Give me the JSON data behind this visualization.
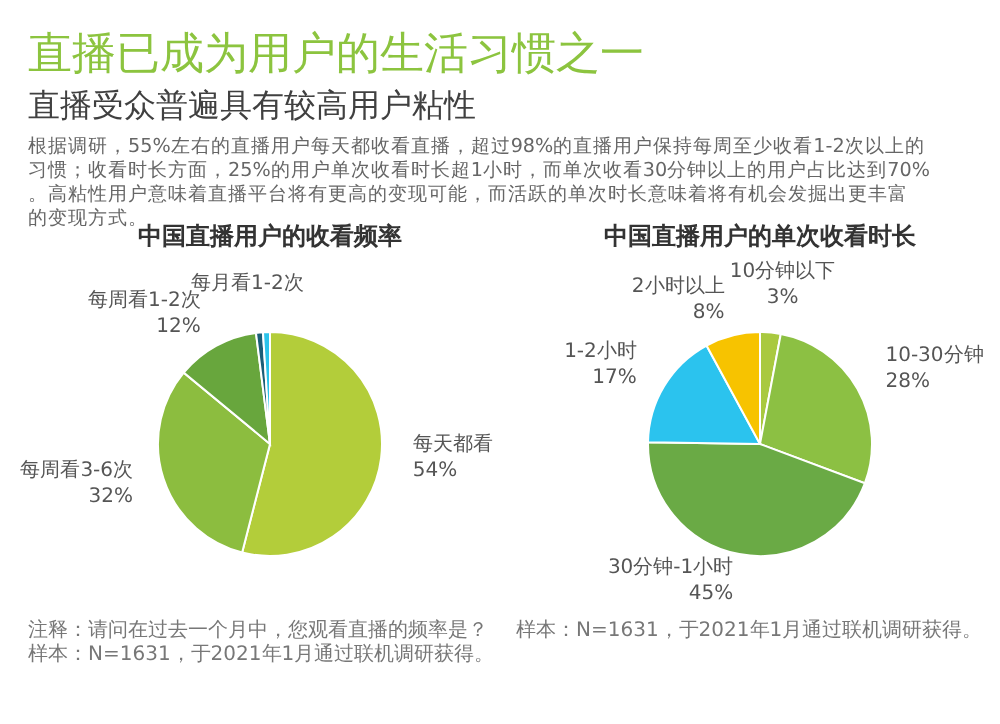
{
  "chart_data": [
    {
      "type": "other",
      "title": "直播已成为用户的生活习惯之一",
      "subtitle": "直播受众普遍具有较高用户粘性",
      "annotations": [
        "根据调研，55%左右的直播用户每天都收看直播，超过98%的直播用户保持每周至少收看1-2次以上的习惯；收看时长方面，25%的用户单次收看时长超1小时，而单次收看30分钟以上的用户占比达到70%。高粘性用户意味着直播平台将有更高的变现可能，而活跃的单次时长意味着将有机会发掘出更丰富的变现方式。"
      ]
    },
    {
      "type": "pie",
      "title": "中国直播用户的收看频率",
      "categories": [
        "每天都看",
        "每周看3-6次",
        "每周看1-2次",
        "每月看1-2次",
        null
      ],
      "values": [
        54,
        32,
        12,
        1,
        1
      ],
      "colors": [
        "#b3cd3a",
        "#8cbd3f",
        "#68a63d",
        "#1b5e78",
        "#2bc3ea"
      ],
      "value_labels": [
        "54%",
        "32%",
        "12%",
        null,
        null
      ],
      "annotations": [
        "注释：请问在过去一个月中，您观看直播的频率是？",
        "样本：N=1631，于2021年1月通过联机调研获得。"
      ]
    },
    {
      "type": "pie",
      "title": "中国直播用户的单次收看时长",
      "categories": [
        "10分钟以下",
        "10-30分钟",
        "30分钟-1小时",
        "1-2小时",
        "2小时以上"
      ],
      "values": [
        3,
        28,
        45,
        17,
        8
      ],
      "colors": [
        "#a9c93f",
        "#8cc043",
        "#6aaa45",
        "#2bc3ee",
        "#f7c300"
      ],
      "value_labels": [
        "3%",
        "28%",
        "45%",
        "17%",
        "8%"
      ],
      "annotations": [
        "样本：N=1631，于2021年1月通过联机调研获得。"
      ]
    }
  ]
}
